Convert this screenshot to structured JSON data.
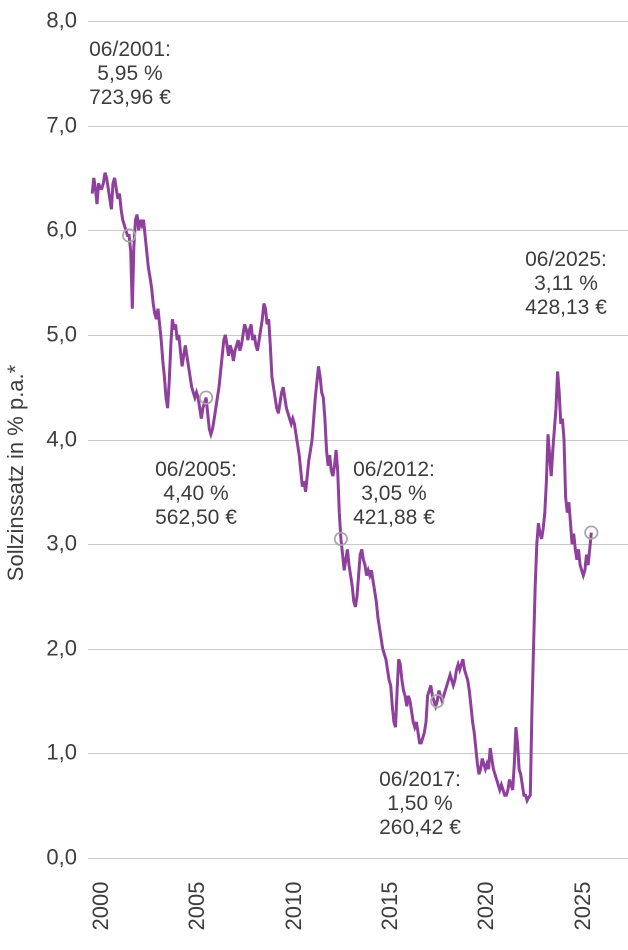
{
  "chart_data": {
    "type": "line",
    "title": "",
    "ylabel": "Sollzinssatz in % p.a.*",
    "xlabel": "",
    "grid": true,
    "legend": "none",
    "ylim": [
      0.0,
      8.0
    ],
    "y_tick_labels": [
      "0,0",
      "1,0",
      "2,0",
      "3,0",
      "4,0",
      "5,0",
      "6,0",
      "7,0",
      "8,0"
    ],
    "x_tick_labels": [
      "2000",
      "2005",
      "2010",
      "2015",
      "2020",
      "2025"
    ],
    "x_tick_years": [
      2000,
      2005,
      2010,
      2015,
      2020,
      2025
    ],
    "line_color": "#8f3f9c",
    "marker_ring_color": "#a8a8a8",
    "text_color": "#3d3d3d",
    "grid_color": "#c9c9c9",
    "series": [
      {
        "name": "Sollzinssatz",
        "unit": "% p.a.",
        "start": "1999-07",
        "frequency": "monthly",
        "values": [
          6.35,
          6.5,
          6.4,
          6.25,
          6.45,
          6.4,
          6.4,
          6.45,
          6.55,
          6.5,
          6.4,
          6.3,
          6.2,
          6.45,
          6.5,
          6.4,
          6.3,
          6.35,
          6.2,
          6.1,
          6.05,
          6.0,
          5.95,
          5.95,
          5.8,
          5.25,
          5.85,
          6.1,
          6.15,
          6.0,
          6.1,
          6.05,
          6.1,
          5.95,
          5.8,
          5.65,
          5.55,
          5.45,
          5.3,
          5.2,
          5.15,
          5.25,
          5.1,
          4.95,
          4.75,
          4.6,
          4.4,
          4.3,
          4.55,
          4.9,
          5.15,
          5.05,
          5.1,
          4.95,
          5.0,
          4.85,
          4.7,
          4.8,
          4.9,
          4.8,
          4.7,
          4.6,
          4.5,
          4.45,
          4.4,
          4.45,
          4.4,
          4.3,
          4.2,
          4.3,
          4.35,
          4.4,
          4.25,
          4.1,
          4.05,
          4.1,
          4.2,
          4.3,
          4.4,
          4.5,
          4.65,
          4.8,
          4.95,
          5.0,
          4.9,
          4.8,
          4.9,
          4.85,
          4.75,
          4.85,
          4.9,
          4.95,
          4.85,
          4.9,
          5.0,
          5.1,
          5.05,
          4.95,
          5.05,
          5.1,
          4.95,
          5.0,
          4.9,
          4.85,
          4.95,
          5.05,
          5.15,
          5.3,
          5.25,
          5.1,
          5.15,
          4.9,
          4.6,
          4.5,
          4.4,
          4.3,
          4.25,
          4.35,
          4.45,
          4.5,
          4.4,
          4.3,
          4.25,
          4.2,
          4.15,
          4.2,
          4.15,
          4.05,
          3.95,
          3.85,
          3.7,
          3.55,
          3.6,
          3.5,
          3.65,
          3.8,
          3.9,
          4.0,
          4.2,
          4.4,
          4.55,
          4.7,
          4.6,
          4.45,
          4.4,
          4.2,
          3.9,
          3.75,
          3.85,
          3.7,
          3.65,
          3.75,
          3.9,
          3.7,
          3.3,
          3.05,
          2.9,
          2.75,
          2.85,
          2.95,
          2.8,
          2.7,
          2.6,
          2.45,
          2.4,
          2.5,
          2.7,
          2.9,
          2.95,
          2.85,
          2.8,
          2.7,
          2.75,
          2.7,
          2.75,
          2.65,
          2.55,
          2.45,
          2.3,
          2.2,
          2.1,
          2.0,
          1.95,
          1.9,
          1.8,
          1.7,
          1.65,
          1.45,
          1.3,
          1.25,
          1.6,
          1.9,
          1.85,
          1.7,
          1.6,
          1.55,
          1.45,
          1.55,
          1.5,
          1.4,
          1.3,
          1.25,
          1.3,
          1.2,
          1.1,
          1.1,
          1.15,
          1.2,
          1.3,
          1.55,
          1.6,
          1.65,
          1.55,
          1.5,
          1.45,
          1.5,
          1.6,
          1.55,
          1.5,
          1.55,
          1.6,
          1.65,
          1.7,
          1.75,
          1.7,
          1.65,
          1.7,
          1.8,
          1.85,
          1.8,
          1.85,
          1.9,
          1.8,
          1.75,
          1.7,
          1.6,
          1.45,
          1.3,
          1.2,
          1.05,
          0.9,
          0.8,
          0.85,
          0.95,
          0.9,
          0.85,
          0.9,
          0.85,
          1.05,
          0.95,
          0.85,
          0.8,
          0.75,
          0.7,
          0.65,
          0.7,
          0.65,
          0.6,
          0.6,
          0.65,
          0.75,
          0.7,
          0.65,
          0.9,
          1.25,
          1.1,
          0.85,
          0.8,
          0.7,
          0.6,
          0.6,
          0.55,
          0.58,
          0.6,
          1.4,
          2.0,
          2.6,
          3.0,
          3.2,
          3.1,
          3.05,
          3.15,
          3.3,
          3.6,
          4.05,
          3.85,
          3.65,
          3.9,
          4.1,
          4.3,
          4.65,
          4.45,
          4.15,
          4.2,
          4.0,
          3.45,
          3.3,
          3.4,
          3.2,
          3.0,
          3.1,
          2.95,
          2.85,
          2.95,
          2.8,
          2.75,
          2.7,
          2.75,
          2.9,
          2.8,
          2.95,
          3.11
        ]
      }
    ],
    "markers": [
      {
        "date": "2001-06",
        "rate_percent": 5.95,
        "monthly_payment_eur": "723,96",
        "lines": [
          "06/2001:",
          "5,95 %",
          "723,96 €"
        ]
      },
      {
        "date": "2005-06",
        "rate_percent": 4.4,
        "monthly_payment_eur": "562,50",
        "lines": [
          "06/2005:",
          "4,40 %",
          "562,50 €"
        ]
      },
      {
        "date": "2012-06",
        "rate_percent": 3.05,
        "monthly_payment_eur": "421,88",
        "lines": [
          "06/2012:",
          "3,05 %",
          "421,88 €"
        ]
      },
      {
        "date": "2017-06",
        "rate_percent": 1.5,
        "monthly_payment_eur": "260,42",
        "lines": [
          "06/2017:",
          "1,50 %",
          "260,42 €"
        ]
      },
      {
        "date": "2025-06",
        "rate_percent": 3.11,
        "monthly_payment_eur": "428,13",
        "lines": [
          "06/2025:",
          "3,11 %",
          "428,13 €"
        ]
      }
    ]
  }
}
